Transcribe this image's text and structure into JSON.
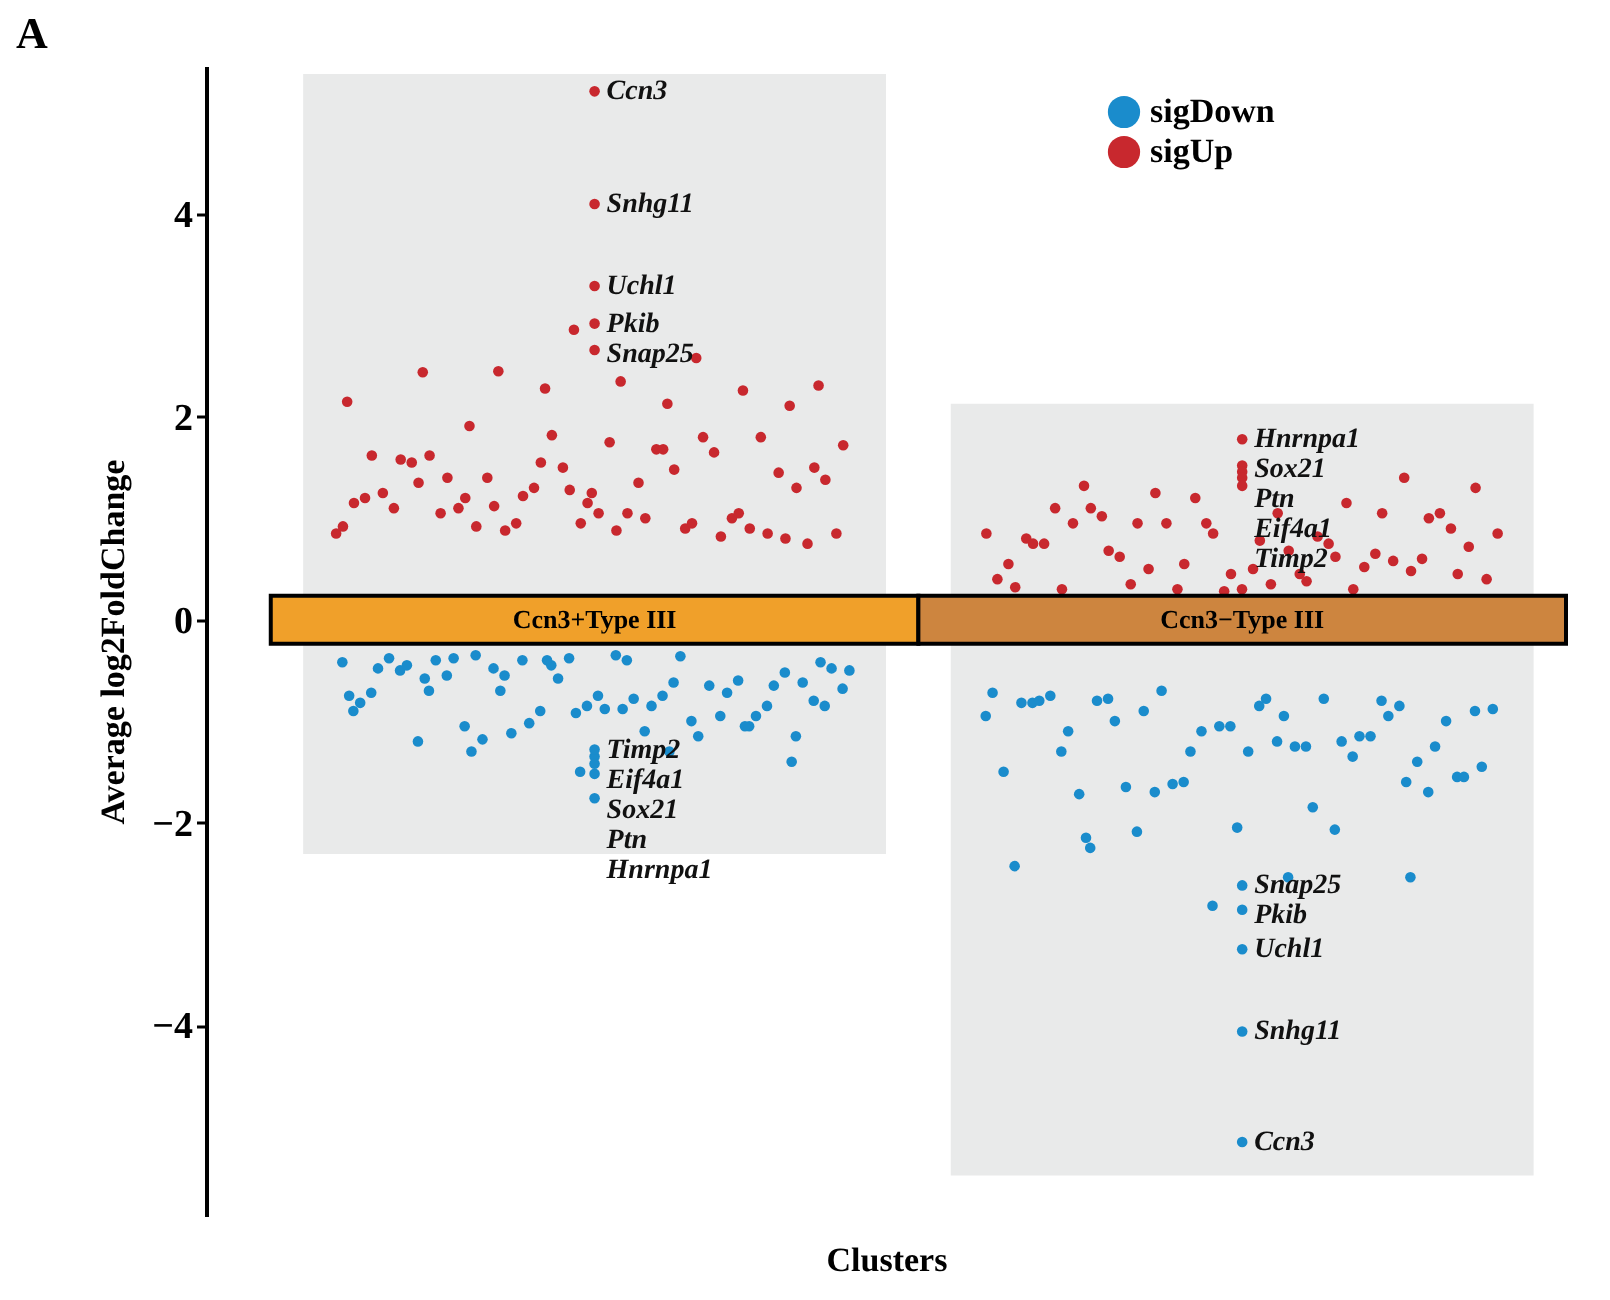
{
  "chart_data": {
    "type": "scatter",
    "title": "A",
    "xlabel": "Clusters",
    "ylabel": "Average log2FoldChange",
    "categories": [
      "Ccn3+Type III",
      "Ccn3−Type III"
    ],
    "ylim": [
      -5.88,
      5.46
    ],
    "yticks": [
      -4,
      -2,
      0,
      2,
      4
    ],
    "grid": false,
    "legend": "top right",
    "marker": "circle",
    "bands": [
      {
        "axis": "x",
        "from": "Ccn3+Type III",
        "to": "Ccn3+Type III",
        "color": "#f0a02a"
      },
      {
        "axis": "x",
        "from": "Ccn3−Type III",
        "to": "Ccn3−Type III",
        "color": "#cd853f"
      },
      {
        "axis": "y",
        "from": -2.31,
        "to": 5.38,
        "color": "#e9eaea"
      },
      {
        "axis": "y",
        "from": -5.48,
        "to": 2.13,
        "color": "#e9eaea"
      }
    ],
    "series": [
      {
        "name": "sigDown",
        "color": "#1a8ccc",
        "x": [
          "Ccn3+Type III",
          "Ccn3+Type III",
          "Ccn3+Type III",
          "Ccn3+Type III",
          "Ccn3+Type III",
          "Ccn3+Type III",
          "Ccn3+Type III",
          "Ccn3+Type III",
          "Ccn3+Type III",
          "Ccn3+Type III",
          "Ccn3+Type III",
          "Ccn3+Type III",
          "Ccn3+Type III",
          "Ccn3+Type III",
          "Ccn3+Type III",
          "Ccn3+Type III",
          "Ccn3+Type III",
          "Ccn3+Type III",
          "Ccn3+Type III",
          "Ccn3+Type III",
          "Ccn3+Type III",
          "Ccn3+Type III",
          "Ccn3+Type III",
          "Ccn3+Type III",
          "Ccn3+Type III",
          "Ccn3+Type III",
          "Ccn3+Type III",
          "Ccn3+Type III",
          "Ccn3+Type III",
          "Ccn3+Type III",
          "Ccn3+Type III",
          "Ccn3+Type III",
          "Ccn3+Type III",
          "Ccn3+Type III",
          "Ccn3+Type III",
          "Ccn3+Type III",
          "Ccn3+Type III",
          "Ccn3+Type III",
          "Ccn3+Type III",
          "Ccn3+Type III",
          "Ccn3+Type III",
          "Ccn3+Type III",
          "Ccn3+Type III",
          "Ccn3+Type III",
          "Ccn3+Type III",
          "Ccn3+Type III",
          "Ccn3+Type III",
          "Ccn3+Type III",
          "Ccn3+Type III",
          "Ccn3+Type III",
          "Ccn3+Type III",
          "Ccn3+Type III",
          "Ccn3+Type III",
          "Ccn3+Type III",
          "Ccn3+Type III",
          "Ccn3+Type III",
          "Ccn3+Type III",
          "Ccn3+Type III",
          "Ccn3+Type III",
          "Ccn3+Type III",
          "Ccn3+Type III",
          "Ccn3+Type III",
          "Ccn3+Type III",
          "Ccn3+Type III",
          "Ccn3+Type III",
          "Ccn3+Type III",
          "Ccn3+Type III",
          "Ccn3+Type III",
          "Ccn3+Type III",
          "Ccn3+Type III",
          "Ccn3+Type III",
          "Ccn3−Type III",
          "Ccn3−Type III",
          "Ccn3−Type III",
          "Ccn3−Type III",
          "Ccn3−Type III",
          "Ccn3−Type III",
          "Ccn3−Type III",
          "Ccn3−Type III",
          "Ccn3−Type III",
          "Ccn3−Type III",
          "Ccn3−Type III",
          "Ccn3−Type III",
          "Ccn3−Type III",
          "Ccn3−Type III",
          "Ccn3−Type III",
          "Ccn3−Type III",
          "Ccn3−Type III",
          "Ccn3−Type III",
          "Ccn3−Type III",
          "Ccn3−Type III",
          "Ccn3−Type III",
          "Ccn3−Type III",
          "Ccn3−Type III",
          "Ccn3−Type III",
          "Ccn3−Type III",
          "Ccn3−Type III",
          "Ccn3−Type III",
          "Ccn3−Type III",
          "Ccn3−Type III",
          "Ccn3−Type III",
          "Ccn3−Type III",
          "Ccn3−Type III",
          "Ccn3−Type III",
          "Ccn3−Type III",
          "Ccn3−Type III",
          "Ccn3−Type III",
          "Ccn3−Type III",
          "Ccn3−Type III",
          "Ccn3−Type III",
          "Ccn3−Type III",
          "Ccn3−Type III",
          "Ccn3−Type III",
          "Ccn3−Type III",
          "Ccn3−Type III",
          "Ccn3−Type III",
          "Ccn3−Type III",
          "Ccn3−Type III",
          "Ccn3−Type III",
          "Ccn3−Type III",
          "Ccn3−Type III",
          "Ccn3−Type III",
          "Ccn3−Type III",
          "Ccn3−Type III",
          "Ccn3−Type III",
          "Ccn3−Type III",
          "Ccn3−Type III",
          "Ccn3−Type III",
          "Ccn3−Type III",
          "Ccn3−Type III",
          "Ccn3−Type III",
          "Ccn3−Type III",
          "Ccn3−Type III",
          "Ccn3−Type III"
        ],
        "values": [
          -1.35,
          -1.52,
          -1.76,
          -1.5,
          -1.42,
          -1.28,
          -0.55,
          -0.85,
          -0.4,
          -0.7,
          -1.05,
          -0.45,
          -0.9,
          -0.62,
          -0.35,
          -1.15,
          -0.75,
          -0.5,
          -0.95,
          -0.4,
          -0.68,
          -1.1,
          -0.55,
          -0.85,
          -0.38,
          -0.72,
          -1.0,
          -0.48,
          -0.8,
          -0.35,
          -1.2,
          -0.6,
          -0.9,
          -0.42,
          -0.75,
          -1.05,
          -0.52,
          -0.85,
          -0.38,
          -0.65,
          -1.12,
          -0.48,
          -0.78,
          -0.4,
          -0.95,
          -0.58,
          -0.82,
          -0.36,
          -1.18,
          -0.62,
          -0.88,
          -0.45,
          -0.72,
          -1.02,
          -0.5,
          -0.85,
          -0.38,
          -0.65,
          -0.92,
          -0.48,
          -1.15,
          -0.7,
          -0.42,
          -0.88,
          -0.58,
          -1.05,
          -0.4,
          -0.75,
          -1.3,
          -1.3,
          -1.4,
          -5.15,
          -3.25,
          -4.06,
          -2.62,
          -2.86,
          -2.54,
          -2.25,
          -2.54,
          -2.82,
          -2.43,
          -2.07,
          -2.09,
          -1.55,
          -0.85,
          -1.3,
          -0.8,
          -1.6,
          -0.95,
          -1.25,
          -0.78,
          -1.7,
          -1.05,
          -0.82,
          -1.35,
          -1.7,
          -0.9,
          -1.2,
          -1.72,
          -0.85,
          -1.1,
          -1.5,
          -0.78,
          -1.65,
          -1.0,
          -1.3,
          -0.75,
          -1.15,
          -1.62,
          -0.88,
          -1.25,
          -0.8,
          -1.4,
          -1.05,
          -0.82,
          -1.2,
          -0.9,
          -1.55,
          -0.78,
          -1.1,
          -0.95,
          -1.3,
          -0.72,
          -1.85,
          -1.0,
          -1.25,
          -2.05,
          -0.8,
          -1.15,
          -0.7,
          -1.45,
          -0.95,
          -2.15,
          -1.6
        ]
      },
      {
        "name": "sigUp",
        "color": "#c8282e",
        "x": [
          "Ccn3+Type III",
          "Ccn3+Type III",
          "Ccn3+Type III",
          "Ccn3+Type III",
          "Ccn3+Type III",
          "Ccn3+Type III",
          "Ccn3+Type III",
          "Ccn3+Type III",
          "Ccn3+Type III",
          "Ccn3+Type III",
          "Ccn3+Type III",
          "Ccn3+Type III",
          "Ccn3+Type III",
          "Ccn3+Type III",
          "Ccn3+Type III",
          "Ccn3+Type III",
          "Ccn3+Type III",
          "Ccn3+Type III",
          "Ccn3+Type III",
          "Ccn3+Type III",
          "Ccn3+Type III",
          "Ccn3+Type III",
          "Ccn3+Type III",
          "Ccn3+Type III",
          "Ccn3+Type III",
          "Ccn3+Type III",
          "Ccn3+Type III",
          "Ccn3+Type III",
          "Ccn3+Type III",
          "Ccn3+Type III",
          "Ccn3+Type III",
          "Ccn3+Type III",
          "Ccn3+Type III",
          "Ccn3+Type III",
          "Ccn3+Type III",
          "Ccn3+Type III",
          "Ccn3+Type III",
          "Ccn3+Type III",
          "Ccn3+Type III",
          "Ccn3+Type III",
          "Ccn3+Type III",
          "Ccn3+Type III",
          "Ccn3+Type III",
          "Ccn3+Type III",
          "Ccn3+Type III",
          "Ccn3+Type III",
          "Ccn3+Type III",
          "Ccn3+Type III",
          "Ccn3+Type III",
          "Ccn3+Type III",
          "Ccn3+Type III",
          "Ccn3+Type III",
          "Ccn3+Type III",
          "Ccn3+Type III",
          "Ccn3+Type III",
          "Ccn3+Type III",
          "Ccn3+Type III",
          "Ccn3+Type III",
          "Ccn3+Type III",
          "Ccn3+Type III",
          "Ccn3+Type III",
          "Ccn3+Type III",
          "Ccn3+Type III",
          "Ccn3+Type III",
          "Ccn3+Type III",
          "Ccn3+Type III",
          "Ccn3+Type III",
          "Ccn3+Type III",
          "Ccn3+Type III",
          "Ccn3+Type III",
          "Ccn3+Type III",
          "Ccn3+Type III",
          "Ccn3+Type III",
          "Ccn3−Type III",
          "Ccn3−Type III",
          "Ccn3−Type III",
          "Ccn3−Type III",
          "Ccn3−Type III",
          "Ccn3−Type III",
          "Ccn3−Type III",
          "Ccn3−Type III",
          "Ccn3−Type III",
          "Ccn3−Type III",
          "Ccn3−Type III",
          "Ccn3−Type III",
          "Ccn3−Type III",
          "Ccn3−Type III",
          "Ccn3−Type III",
          "Ccn3−Type III",
          "Ccn3−Type III",
          "Ccn3−Type III",
          "Ccn3−Type III",
          "Ccn3−Type III",
          "Ccn3−Type III",
          "Ccn3−Type III",
          "Ccn3−Type III",
          "Ccn3−Type III",
          "Ccn3−Type III",
          "Ccn3−Type III",
          "Ccn3−Type III",
          "Ccn3−Type III",
          "Ccn3−Type III",
          "Ccn3−Type III",
          "Ccn3−Type III",
          "Ccn3−Type III",
          "Ccn3−Type III",
          "Ccn3−Type III",
          "Ccn3−Type III",
          "Ccn3−Type III",
          "Ccn3−Type III",
          "Ccn3−Type III",
          "Ccn3−Type III",
          "Ccn3−Type III",
          "Ccn3−Type III",
          "Ccn3−Type III",
          "Ccn3−Type III",
          "Ccn3−Type III",
          "Ccn3−Type III",
          "Ccn3−Type III",
          "Ccn3−Type III",
          "Ccn3−Type III",
          "Ccn3−Type III",
          "Ccn3−Type III",
          "Ccn3−Type III",
          "Ccn3−Type III",
          "Ccn3−Type III",
          "Ccn3−Type III",
          "Ccn3−Type III",
          "Ccn3−Type III",
          "Ccn3−Type III",
          "Ccn3−Type III",
          "Ccn3−Type III",
          "Ccn3−Type III"
        ],
        "values": [
          5.21,
          4.1,
          2.92,
          3.29,
          2.86,
          2.66,
          2.58,
          2.45,
          2.31,
          2.35,
          2.44,
          2.26,
          2.28,
          2.15,
          2.13,
          1.91,
          2.11,
          1.25,
          1.1,
          1.65,
          0.95,
          0.85,
          1.35,
          1.05,
          1.8,
          1.5,
          1.2,
          0.9,
          1.4,
          0.75,
          1.75,
          1.55,
          1.0,
          1.3,
          0.85,
          1.68,
          1.1,
          1.45,
          0.95,
          1.25,
          1.8,
          0.88,
          1.38,
          1.05,
          1.62,
          0.9,
          1.82,
          1.15,
          1.48,
          0.92,
          1.3,
          1.05,
          1.58,
          0.82,
          1.22,
          1.72,
          1.0,
          1.4,
          0.85,
          1.28,
          1.62,
          0.95,
          1.12,
          1.5,
          0.88,
          1.35,
          1.05,
          1.55,
          0.92,
          1.68,
          1.2,
          0.8,
          1.15,
          1.78,
          1.52,
          1.46,
          1.4,
          1.32,
          1.32,
          1.4,
          0.95,
          0.55,
          0.75,
          0.35,
          0.9,
          0.5,
          1.1,
          0.65,
          0.3,
          0.85,
          0.45,
          1.02,
          0.6,
          0.28,
          0.8,
          1.15,
          0.5,
          0.72,
          0.35,
          0.95,
          0.58,
          1.2,
          0.4,
          0.82,
          0.62,
          1.05,
          0.3,
          0.75,
          0.52,
          0.95,
          0.4,
          0.68,
          1.1,
          0.48,
          0.85,
          0.32,
          0.62,
          0.95,
          0.45,
          0.78,
          0.3,
          1.05,
          0.55,
          0.85,
          0.38,
          0.68,
          1.0,
          0.45,
          0.75,
          0.3,
          1.25,
          1.3,
          1.05
        ]
      }
    ],
    "annotations": [
      {
        "text": "Ccn3",
        "x": "Ccn3+Type III",
        "y": 5.21
      },
      {
        "text": "Snhg11",
        "x": "Ccn3+Type III",
        "y": 4.1
      },
      {
        "text": "Uchl1",
        "x": "Ccn3+Type III",
        "y": 3.29
      },
      {
        "text": "Pkib",
        "x": "Ccn3+Type III",
        "y": 2.92
      },
      {
        "text": "Snap25",
        "x": "Ccn3+Type III",
        "y": 2.66
      },
      {
        "text": "Timp2",
        "x": "Ccn3+Type III",
        "y": -1.28
      },
      {
        "text": "Eif4a1",
        "x": "Ccn3+Type III",
        "y": -1.35
      },
      {
        "text": "Sox21",
        "x": "Ccn3+Type III",
        "y": -1.42
      },
      {
        "text": "Ptn",
        "x": "Ccn3+Type III",
        "y": -1.52
      },
      {
        "text": "Hnrnpa1",
        "x": "Ccn3+Type III",
        "y": -1.76
      },
      {
        "text": "Hnrnpa1",
        "x": "Ccn3−Type III",
        "y": 1.78
      },
      {
        "text": "Sox21",
        "x": "Ccn3−Type III",
        "y": 1.52
      },
      {
        "text": "Ptn",
        "x": "Ccn3−Type III",
        "y": 1.46
      },
      {
        "text": "Timp2",
        "x": "Ccn3−Type III",
        "y": 1.32
      },
      {
        "text": "Eif4a1",
        "x": "Ccn3−Type III",
        "y": 1.4
      },
      {
        "text": "Snap25",
        "x": "Ccn3−Type III",
        "y": -2.62
      },
      {
        "text": "Pkib",
        "x": "Ccn3−Type III",
        "y": -2.86
      },
      {
        "text": "Uchl1",
        "x": "Ccn3−Type III",
        "y": -3.25
      },
      {
        "text": "Snhg11",
        "x": "Ccn3−Type III",
        "y": -4.06
      },
      {
        "text": "Ccn3",
        "x": "Ccn3−Type III",
        "y": -5.15
      }
    ]
  }
}
